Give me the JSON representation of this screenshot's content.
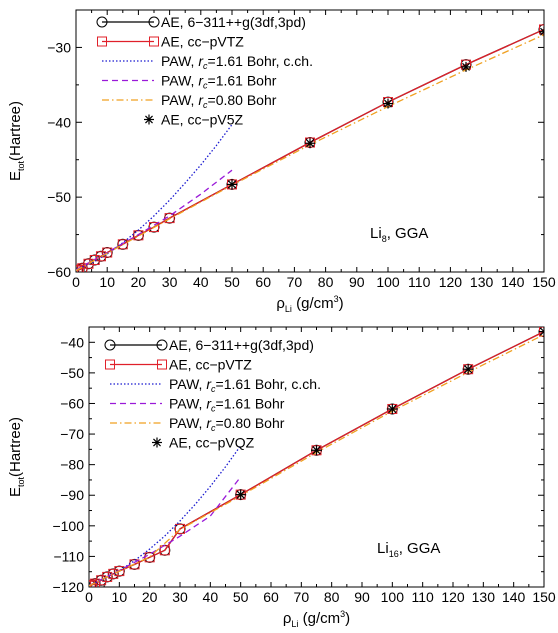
{
  "chart_data": [
    {
      "type": "line",
      "ylabel_main": "E",
      "ylabel_sub": "tot",
      "ylabel_rest": "(Hartree)",
      "xlabel_main": "ρ",
      "xlabel_sub": "Li",
      "xlabel_rest": " (g/cm",
      "xlabel_sup": "3",
      "xlabel_end": ")",
      "xlim": [
        0,
        150
      ],
      "ylim": [
        -60,
        -25
      ],
      "xticks": [
        0,
        10,
        20,
        30,
        40,
        50,
        60,
        70,
        80,
        90,
        100,
        110,
        120,
        130,
        140,
        150
      ],
      "yticks": [
        -60,
        -50,
        -40,
        -30
      ],
      "ytick_labels": [
        "−60",
        "−50",
        "−40",
        "−30"
      ],
      "annotation": {
        "main": "Li",
        "sub": "8",
        "rest": ", GGA"
      },
      "legend_position": "top-left",
      "series": [
        {
          "name": "AE, 6−311++g(3df,3pd)",
          "color": "#000000",
          "style": "solid",
          "marker": "circle",
          "x": [
            0.5,
            1,
            2,
            4,
            6,
            8,
            10,
            15,
            20,
            25,
            30,
            50,
            75,
            100,
            125,
            150
          ],
          "y": [
            -59.8,
            -59.7,
            -59.5,
            -58.9,
            -58.4,
            -57.9,
            -57.4,
            -56.3,
            -55.1,
            -54.0,
            -52.8,
            -48.3,
            -42.7,
            -37.3,
            -32.3,
            -27.6
          ]
        },
        {
          "name": "AE, cc−pVTZ",
          "color": "#e0202a",
          "style": "solid",
          "marker": "square",
          "x": [
            0.5,
            1,
            2,
            4,
            6,
            8,
            10,
            15,
            20,
            25,
            30,
            50,
            75,
            100,
            125,
            150
          ],
          "y": [
            -59.8,
            -59.7,
            -59.5,
            -58.9,
            -58.4,
            -57.9,
            -57.4,
            -56.3,
            -55.1,
            -54.0,
            -52.8,
            -48.3,
            -42.7,
            -37.3,
            -32.3,
            -27.6
          ]
        },
        {
          "name_parts": [
            "PAW, ",
            "r",
            "c",
            "=1.61 Bohr, c.ch."
          ],
          "color": "#1a1ad0",
          "style": "dotted",
          "marker": "none",
          "x": [
            0,
            5,
            10,
            15,
            20,
            25,
            30,
            35,
            40,
            45,
            50
          ],
          "y": [
            -59.7,
            -58.8,
            -57.6,
            -56.1,
            -54.4,
            -52.5,
            -50.4,
            -48.1,
            -45.7,
            -43.1,
            -40.3
          ]
        },
        {
          "name_parts": [
            "PAW, ",
            "r",
            "c",
            "=1.61 Bohr"
          ],
          "color": "#9a1ad8",
          "style": "dashed",
          "marker": "none",
          "x": [
            0,
            10,
            20,
            30,
            40,
            50
          ],
          "y": [
            -59.7,
            -57.4,
            -55.0,
            -52.5,
            -49.6,
            -46.4
          ]
        },
        {
          "name_parts": [
            "PAW, ",
            "r",
            "c",
            "=0.80 Bohr"
          ],
          "color": "#f0a020",
          "style": "dashdot",
          "marker": "none",
          "x": [
            0,
            10,
            20,
            30,
            50,
            75,
            100,
            125,
            150
          ],
          "y": [
            -59.8,
            -57.5,
            -55.2,
            -52.9,
            -48.4,
            -43.0,
            -37.9,
            -33.0,
            -28.3
          ]
        },
        {
          "name": "AE, cc−pV5Z",
          "color": "#000000",
          "style": "none",
          "marker": "asterisk",
          "x": [
            50,
            75,
            100,
            125,
            150
          ],
          "y": [
            -48.3,
            -42.8,
            -37.5,
            -32.6,
            -27.9
          ]
        }
      ]
    },
    {
      "type": "line",
      "ylabel_main": "E",
      "ylabel_sub": "tot",
      "ylabel_rest": "(Hartree)",
      "xlabel_main": "ρ",
      "xlabel_sub": "Li",
      "xlabel_rest": " (g/cm",
      "xlabel_sup": "3",
      "xlabel_end": ")",
      "xlim": [
        0,
        150
      ],
      "ylim": [
        -120,
        -35
      ],
      "xticks": [
        0,
        10,
        20,
        30,
        40,
        50,
        60,
        70,
        80,
        90,
        100,
        110,
        120,
        130,
        140,
        150
      ],
      "yticks": [
        -120,
        -110,
        -100,
        -90,
        -80,
        -70,
        -60,
        -50,
        -40
      ],
      "ytick_labels": [
        "−120",
        "−110",
        "−100",
        "−90",
        "−80",
        "−70",
        "−60",
        "−50",
        "−40"
      ],
      "annotation": {
        "main": "Li",
        "sub": "16",
        "rest": ", GGA"
      },
      "legend_position": "top-left",
      "series": [
        {
          "name": "AE, 6−311++g(3df,3pd)",
          "color": "#000000",
          "style": "solid",
          "marker": "circle",
          "x": [
            0.5,
            1,
            2,
            4,
            6,
            8,
            10,
            15,
            20,
            25,
            30,
            50,
            75,
            100,
            125,
            150
          ],
          "y": [
            -119.6,
            -119.3,
            -118.9,
            -117.8,
            -116.7,
            -115.7,
            -114.8,
            -112.6,
            -110.3,
            -108.0,
            -101.0,
            -89.8,
            -75.3,
            -61.8,
            -48.8,
            -36.5
          ]
        },
        {
          "name": "AE, cc−pVTZ",
          "color": "#e0202a",
          "style": "solid",
          "marker": "square",
          "x": [
            0.5,
            1,
            2,
            4,
            6,
            8,
            10,
            15,
            20,
            25,
            30,
            50,
            75,
            100,
            125,
            150
          ],
          "y": [
            -119.6,
            -119.3,
            -118.9,
            -117.8,
            -116.7,
            -115.7,
            -114.8,
            -112.6,
            -110.3,
            -108.0,
            -101.0,
            -89.8,
            -75.3,
            -61.8,
            -48.8,
            -36.5
          ]
        },
        {
          "name_parts": [
            "PAW, ",
            "r",
            "c",
            "=1.61 Bohr, c.ch."
          ],
          "color": "#1a1ad0",
          "style": "dotted",
          "marker": "none",
          "x": [
            0,
            5,
            10,
            15,
            20,
            25,
            30,
            35,
            40,
            45,
            50
          ],
          "y": [
            -119.5,
            -117.4,
            -114.7,
            -111.4,
            -107.6,
            -103.3,
            -98.4,
            -93.0,
            -87.1,
            -80.7,
            -73.8
          ]
        },
        {
          "name_parts": [
            "PAW, ",
            "r",
            "c",
            "=1.61 Bohr"
          ],
          "color": "#9a1ad8",
          "style": "dashed",
          "marker": "none",
          "x": [
            0,
            10,
            20,
            30,
            40,
            50
          ],
          "y": [
            -119.5,
            -114.6,
            -109.3,
            -103.4,
            -96.8,
            -84.0
          ]
        },
        {
          "name_parts": [
            "PAW, ",
            "r",
            "c",
            "=0.80 Bohr"
          ],
          "color": "#f0a020",
          "style": "dashdot",
          "marker": "none",
          "x": [
            0,
            10,
            20,
            30,
            50,
            75,
            100,
            125,
            150
          ],
          "y": [
            -119.6,
            -114.8,
            -110.2,
            -101.2,
            -90.2,
            -76.0,
            -62.5,
            -49.8,
            -37.5
          ]
        },
        {
          "name": "AE, cc−pVQZ",
          "color": "#000000",
          "style": "none",
          "marker": "asterisk",
          "x": [
            50,
            75,
            100,
            125,
            150
          ],
          "y": [
            -89.8,
            -75.3,
            -61.8,
            -48.8,
            -36.5
          ]
        }
      ]
    }
  ]
}
